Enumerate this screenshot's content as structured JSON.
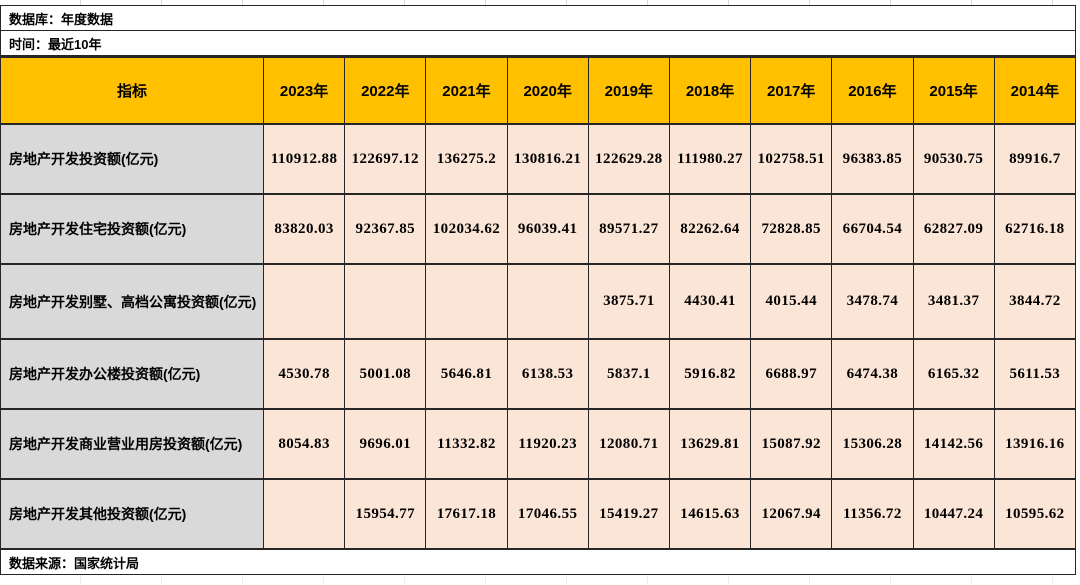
{
  "meta": {
    "database_label": "数据库：年度数据",
    "time_label": "时间：最近10年",
    "source_label": "数据来源：国家统计局"
  },
  "colors": {
    "header_bg": "#FFC000",
    "indicator_column_bg": "#D9D9D9",
    "value_cell_bg": "#FBE5D6",
    "border": "#262626"
  },
  "table": {
    "indicator_header": "指标",
    "year_headers": [
      "2023年",
      "2022年",
      "2021年",
      "2020年",
      "2019年",
      "2018年",
      "2017年",
      "2016年",
      "2015年",
      "2014年"
    ],
    "rows": [
      {
        "indicator": "房地产开发投资额(亿元)",
        "values": [
          "110912.88",
          "122697.12",
          "136275.2",
          "130816.21",
          "122629.28",
          "111980.27",
          "102758.51",
          "96383.85",
          "90530.75",
          "89916.7"
        ]
      },
      {
        "indicator": "房地产开发住宅投资额(亿元)",
        "values": [
          "83820.03",
          "92367.85",
          "102034.62",
          "96039.41",
          "89571.27",
          "82262.64",
          "72828.85",
          "66704.54",
          "62827.09",
          "62716.18"
        ]
      },
      {
        "indicator": "房地产开发别墅、高档公寓投资额(亿元)",
        "values": [
          "",
          "",
          "",
          "",
          "3875.71",
          "4430.41",
          "4015.44",
          "3478.74",
          "3481.37",
          "3844.72"
        ]
      },
      {
        "indicator": "房地产开发办公楼投资额(亿元)",
        "values": [
          "4530.78",
          "5001.08",
          "5646.81",
          "6138.53",
          "5837.1",
          "5916.82",
          "6688.97",
          "6474.38",
          "6165.32",
          "5611.53"
        ]
      },
      {
        "indicator": "房地产开发商业营业用房投资额(亿元)",
        "values": [
          "8054.83",
          "9696.01",
          "11332.82",
          "11920.23",
          "12080.71",
          "13629.81",
          "15087.92",
          "15306.28",
          "14142.56",
          "13916.16"
        ]
      },
      {
        "indicator": "房地产开发其他投资额(亿元)",
        "values": [
          "",
          "15954.77",
          "17617.18",
          "17046.55",
          "15419.27",
          "14615.63",
          "12067.94",
          "11356.72",
          "10447.24",
          "10595.62"
        ]
      }
    ]
  }
}
